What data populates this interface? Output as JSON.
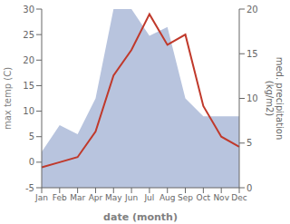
{
  "chart_data": {
    "type": "line",
    "xlabel": "date (month)",
    "ylabel": "max temp (C)",
    "y2label": "med. precipitation\n(kg/m2)",
    "categories": [
      "Jan",
      "Feb",
      "Mar",
      "Apr",
      "May",
      "Jun",
      "Jul",
      "Aug",
      "Sep",
      "Oct",
      "Nov",
      "Dec"
    ],
    "series": [
      {
        "type": "area",
        "axis": "y2",
        "color": "#b8c4de",
        "values": [
          4,
          7,
          6,
          10,
          20,
          20,
          17,
          18,
          10,
          8,
          8,
          8
        ]
      },
      {
        "type": "line",
        "color": "#c0392b",
        "values": [
          -1,
          0,
          1,
          6,
          17,
          22,
          29,
          23,
          25,
          11,
          5,
          3
        ]
      }
    ],
    "ylim": [
      -5,
      30
    ],
    "yticks": [
      -5,
      0,
      5,
      10,
      15,
      20,
      25,
      30
    ],
    "y2lim": [
      0,
      20
    ],
    "y2ticks": [
      0,
      5,
      10,
      15,
      20
    ],
    "grid": false
  }
}
